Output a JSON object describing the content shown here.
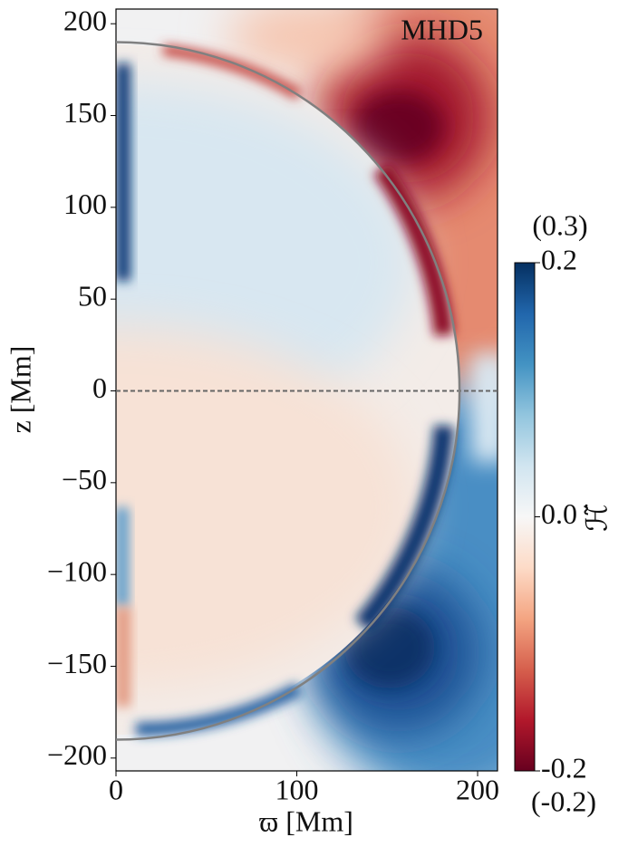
{
  "chart_data": {
    "type": "contour",
    "title": "MHD5",
    "xlabel": "ϖ [Mm]",
    "ylabel": "z [Mm]",
    "xlim": [
      0,
      211
    ],
    "ylim": [
      -207,
      208
    ],
    "xticks": [
      0,
      100,
      200
    ],
    "yticks": [
      {
        "value": -200,
        "label": "−200"
      },
      {
        "value": -150,
        "label": "−150"
      },
      {
        "value": -100,
        "label": "−100"
      },
      {
        "value": -50,
        "label": "−50"
      },
      0,
      50,
      100,
      150,
      200
    ],
    "circle_radius": 190,
    "circle_color": "#808080",
    "reference_line_z": 0,
    "colorbar": {
      "label": "ℋ̃",
      "lim": [
        -0.2,
        0.2
      ],
      "ticks": [
        -0.2,
        {
          "value": 0,
          "label": "0.0"
        },
        0.2
      ],
      "max_note": "(0.3)",
      "min_note": "(-0.2)",
      "colors": [
        "#053061",
        "#2166ac",
        "#4393c3",
        "#92c5de",
        "#d1e5f0",
        "#f7f7f7",
        "#fddbc7",
        "#f4a582",
        "#d6604d",
        "#b2182b",
        "#67001f"
      ]
    }
  }
}
